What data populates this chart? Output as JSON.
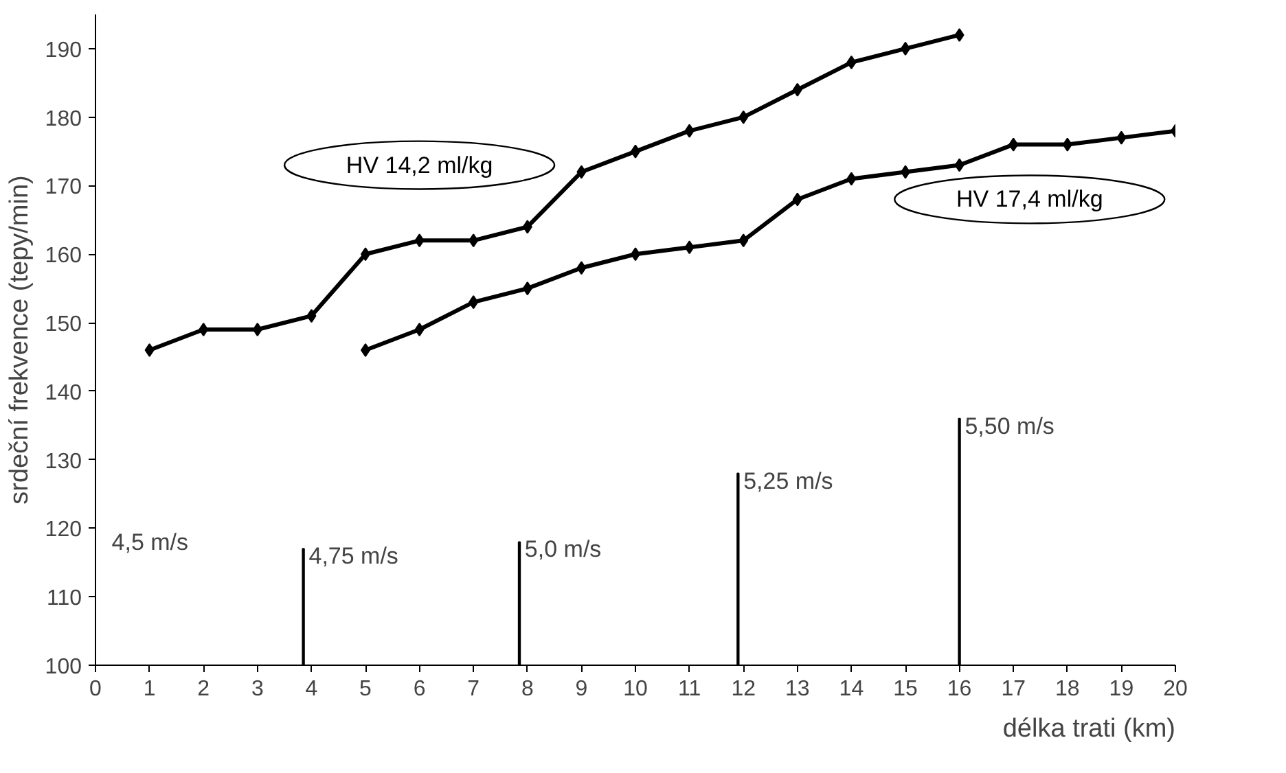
{
  "chart_data": {
    "type": "line",
    "xlabel": "délka trati (km)",
    "ylabel": "srdeční frekvence (tepy/min)",
    "xlim": [
      0,
      20
    ],
    "ylim": [
      100,
      195
    ],
    "xticks": [
      0,
      1,
      2,
      3,
      4,
      5,
      6,
      7,
      8,
      9,
      10,
      11,
      12,
      13,
      14,
      15,
      16,
      17,
      18,
      19,
      20
    ],
    "yticks": [
      100,
      110,
      120,
      130,
      140,
      150,
      160,
      170,
      180,
      190
    ],
    "grid": false,
    "marker": "diamond",
    "line_style": "solid",
    "series": [
      {
        "name": "HV 14,2 ml/kg",
        "color": "#000000",
        "x": [
          1,
          2,
          3,
          4,
          5,
          6,
          7,
          8,
          9,
          10,
          11,
          12,
          13,
          14,
          15,
          16
        ],
        "values": [
          146,
          149,
          149,
          151,
          160,
          162,
          162,
          164,
          172,
          175,
          178,
          180,
          184,
          188,
          190,
          192
        ]
      },
      {
        "name": "HV 17,4 ml/kg",
        "color": "#000000",
        "x": [
          5,
          6,
          7,
          8,
          9,
          10,
          11,
          12,
          13,
          14,
          15,
          16,
          17,
          18,
          19,
          20
        ],
        "values": [
          146,
          149,
          153,
          155,
          158,
          160,
          161,
          162,
          168,
          171,
          172,
          173,
          176,
          176,
          177,
          178
        ]
      },
      {
        "type": "bar",
        "color": "#000000",
        "x": [
          3.85,
          7.85,
          11.9,
          16
        ],
        "base": [
          100,
          100,
          100,
          100
        ],
        "values": [
          17,
          18,
          28,
          36
        ]
      }
    ],
    "annotations": [
      "4,5 m/s",
      "4,75 m/s",
      "5,0 m/s",
      "5,25 m/s",
      "5,50 m/s"
    ]
  }
}
